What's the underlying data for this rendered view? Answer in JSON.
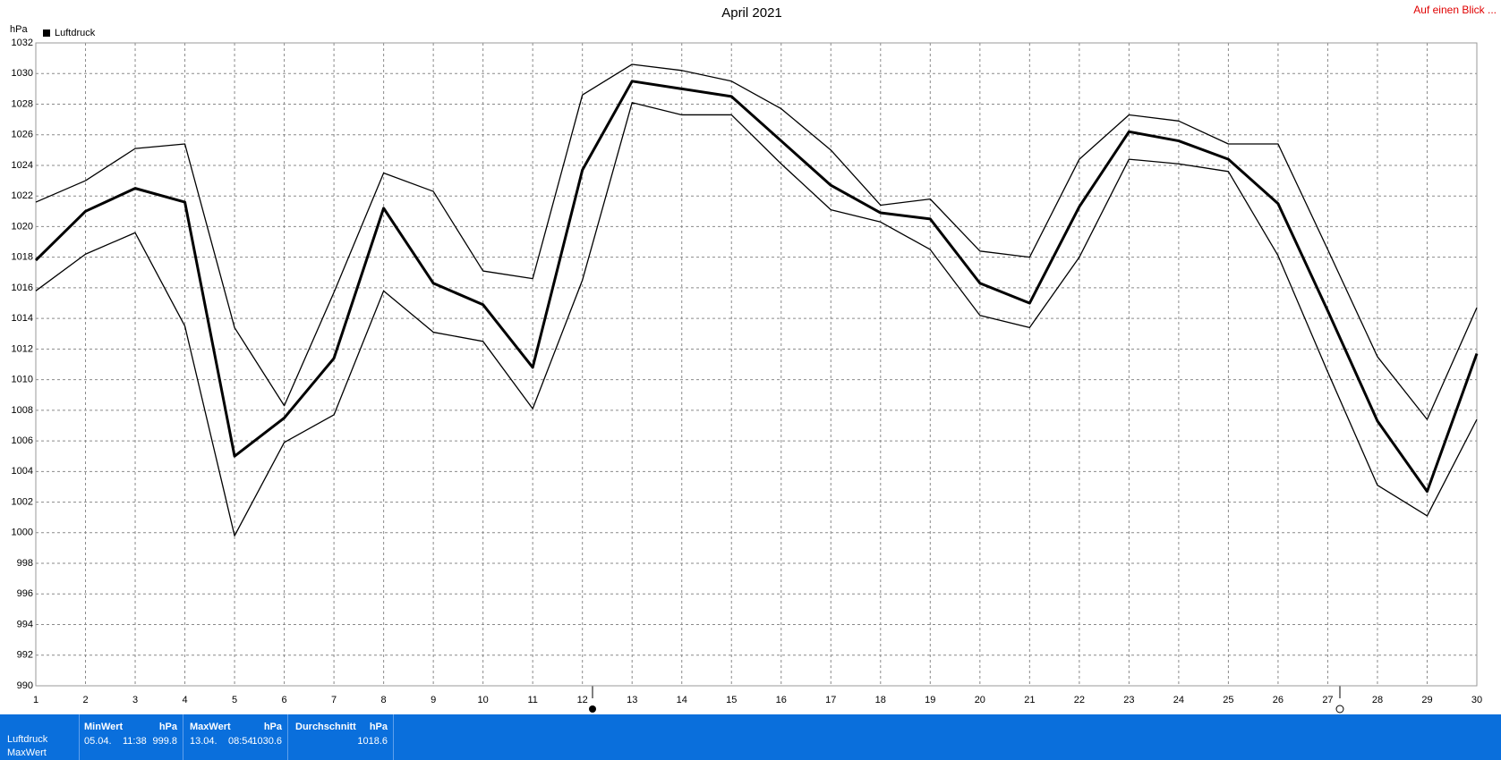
{
  "chart_data": {
    "type": "line",
    "title": "April 2021",
    "y_label": "hPa",
    "corner_link": "Auf einen Blick ...",
    "x": [
      1,
      2,
      3,
      4,
      5,
      6,
      7,
      8,
      9,
      10,
      11,
      12,
      13,
      14,
      15,
      16,
      17,
      18,
      19,
      20,
      21,
      22,
      23,
      24,
      25,
      26,
      27,
      28,
      29,
      30
    ],
    "xlim": [
      1,
      30
    ],
    "xticks": [
      1,
      2,
      3,
      4,
      5,
      6,
      7,
      8,
      9,
      10,
      11,
      12,
      13,
      14,
      15,
      16,
      17,
      18,
      19,
      20,
      21,
      22,
      23,
      24,
      25,
      26,
      27,
      28,
      29,
      30
    ],
    "ylim": [
      990,
      1032
    ],
    "yticks": [
      990,
      992,
      994,
      996,
      998,
      1000,
      1002,
      1004,
      1006,
      1008,
      1010,
      1012,
      1014,
      1016,
      1018,
      1020,
      1022,
      1024,
      1026,
      1028,
      1030,
      1032
    ],
    "grid": true,
    "legend": "top-left",
    "series": [
      {
        "name": "Luftdruck",
        "color": "#000000",
        "values": [
          1017.8,
          1021.0,
          1022.5,
          1021.6,
          1005.0,
          1007.5,
          1011.4,
          1021.2,
          1016.3,
          1014.9,
          1010.8,
          1023.7,
          1029.5,
          1029.0,
          1028.5,
          1025.6,
          1022.7,
          1020.9,
          1020.5,
          1016.3,
          1015.0,
          1021.3,
          1026.2,
          1025.6,
          1024.4,
          1021.5,
          1014.5,
          1007.3,
          1002.7,
          1011.7
        ]
      },
      {
        "color": "#000000",
        "values": [
          1021.6,
          1023.0,
          1025.1,
          1025.4,
          1013.4,
          1008.3,
          1015.7,
          1023.5,
          1022.3,
          1017.1,
          1016.6,
          1028.6,
          1030.6,
          1030.2,
          1029.5,
          1027.7,
          1025.0,
          1021.4,
          1021.8,
          1018.4,
          1018.0,
          1024.4,
          1027.3,
          1026.9,
          1025.4,
          1025.4,
          1018.5,
          1011.5,
          1007.4,
          1014.7
        ]
      },
      {
        "color": "#000000",
        "values": [
          1015.8,
          1018.2,
          1019.6,
          1013.5,
          999.8,
          1005.9,
          1007.7,
          1015.8,
          1013.1,
          1012.5,
          1008.1,
          1016.5,
          1028.1,
          1027.3,
          1027.3,
          1024.1,
          1021.1,
          1020.3,
          1018.5,
          1014.2,
          1013.4,
          1018.0,
          1024.4,
          1024.1,
          1023.6,
          1018.1,
          1010.5,
          1003.1,
          1001.1,
          1007.4
        ]
      }
    ]
  },
  "summary": {
    "rows": [
      "Luftdruck",
      "MaxWert"
    ],
    "columns": [
      {
        "header": "MinWert",
        "unit": "hPa",
        "date": "05.04.",
        "time": "11:38",
        "value": "999.8"
      },
      {
        "header": "MaxWert",
        "unit": "hPa",
        "date": "13.04.",
        "time": "08:54",
        "value": "1030.6"
      },
      {
        "header": "Durchschnitt",
        "unit": "hPa",
        "value": "1018.6"
      }
    ]
  }
}
